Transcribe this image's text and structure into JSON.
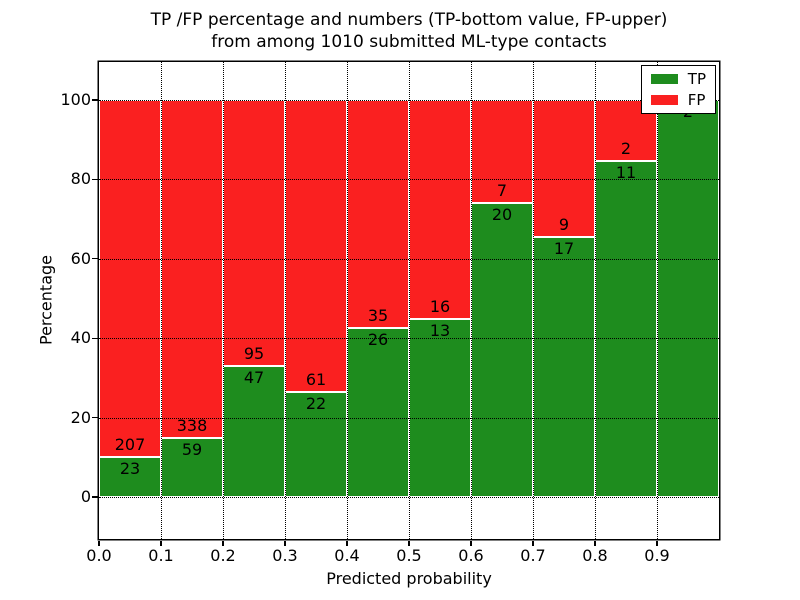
{
  "title": {
    "line1": "TP /FP percentage and numbers (TP-bottom value, FP-upper)",
    "line2": "from among 1010 submitted ML-type contacts"
  },
  "axes": {
    "xlabel": "Predicted probability",
    "ylabel": "Percentage",
    "x_tick_labels": [
      "0.0",
      "0.1",
      "0.2",
      "0.3",
      "0.4",
      "0.5",
      "0.6",
      "0.7",
      "0.8",
      "0.9"
    ],
    "y_tick_labels": [
      "0",
      "20",
      "40",
      "60",
      "80",
      "100"
    ],
    "y_tick_values": [
      0,
      20,
      40,
      60,
      80,
      100
    ]
  },
  "legend": {
    "items": [
      {
        "label": "TP",
        "color": "#1e8c1e"
      },
      {
        "label": "FP",
        "color": "#fa2020"
      }
    ]
  },
  "colors": {
    "tp": "#1e8c1e",
    "fp": "#fa2020",
    "grid": "#000000",
    "text": "#000000"
  },
  "chart_data": {
    "type": "bar",
    "stacked": true,
    "normalized_to_percent": true,
    "title": "TP /FP percentage and numbers (TP-bottom value, FP-upper) from among 1010 submitted ML-type contacts",
    "xlabel": "Predicted probability",
    "ylabel": "Percentage",
    "bin_starts": [
      0.0,
      0.1,
      0.2,
      0.3,
      0.4,
      0.5,
      0.6,
      0.7,
      0.8,
      0.9
    ],
    "bin_width": 0.1,
    "series": [
      {
        "name": "TP",
        "color": "#1e8c1e",
        "counts": [
          23,
          59,
          47,
          22,
          26,
          13,
          20,
          17,
          11,
          2
        ]
      },
      {
        "name": "FP",
        "color": "#fa2020",
        "counts": [
          207,
          338,
          95,
          61,
          35,
          16,
          7,
          9,
          2,
          0
        ]
      }
    ],
    "tp_percent": [
      10.0,
      14.9,
      33.1,
      26.5,
      42.6,
      44.8,
      74.1,
      65.4,
      84.6,
      100.0
    ],
    "total_contacts": 1010,
    "xlim": [
      0.0,
      1.0
    ],
    "ylim": [
      -10,
      110
    ],
    "grid": "dotted",
    "legend_position": "upper right"
  }
}
